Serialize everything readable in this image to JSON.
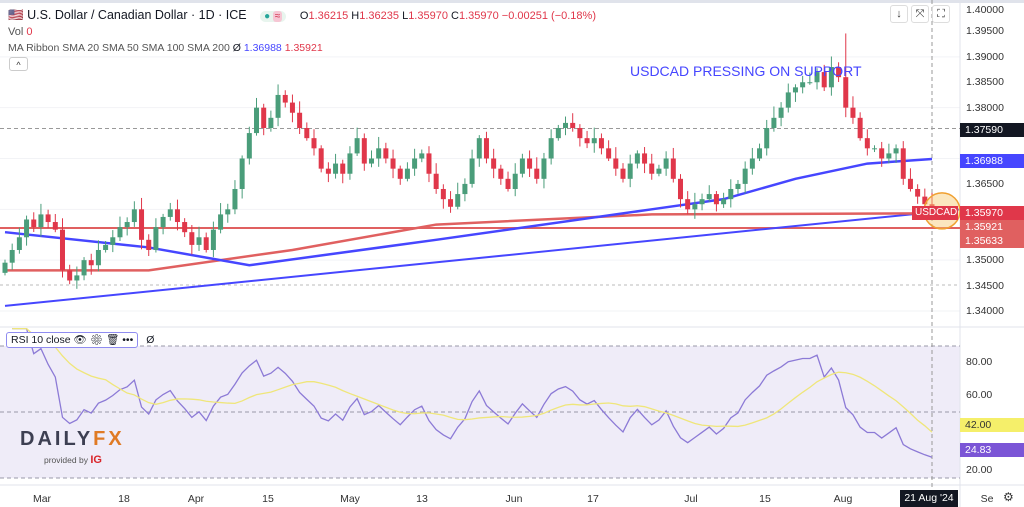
{
  "header": {
    "title": "U.S. Dollar / Canadian Dollar · 1D · ICE",
    "open_label": "O",
    "open": "1.36215",
    "high_label": "H",
    "high": "1.36235",
    "low_label": "L",
    "low": "1.35970",
    "close_label": "C",
    "close": "1.35970",
    "change": "−0.00251 (−0.18%)",
    "vol_label": "Vol",
    "vol": "0",
    "ma_label": "MA Ribbon SMA 20 SMA 50 SMA 100 SMA 200",
    "ma_symbol": "Ø",
    "ma_val1": "1.36988",
    "ma_val2": "1.35921",
    "collapse": "^"
  },
  "toolbar": {
    "down": "↓",
    "shrink": "⤧",
    "fullscreen": "⛶"
  },
  "annotation": "USDCAD PRESSING ON SUPPORT",
  "price_axis": [
    "1.40000",
    "1.39500",
    "1.39000",
    "1.38500",
    "1.38000",
    "1.36500",
    "1.35000",
    "1.34500",
    "1.34000"
  ],
  "price_axis_values": [
    1.4,
    1.395,
    1.39,
    1.385,
    1.38,
    1.365,
    1.35,
    1.345,
    1.34
  ],
  "tags": {
    "cross": "1.37590",
    "sma_blue": "1.36988",
    "symbol": "USDCAD",
    "last": "1.35970",
    "sma_red": "1.35921",
    "hline": "1.35633"
  },
  "rsi": {
    "legend": "RSI 10 close",
    "null": "Ø",
    "axis": [
      "80.00",
      "60.00",
      "20.00"
    ],
    "ma_tag": "42.00",
    "rsi_tag": "24.83"
  },
  "time_axis": [
    "Mar",
    "18",
    "Apr",
    "15",
    "May",
    "13",
    "Jun",
    "17",
    "Jul",
    "15",
    "Aug",
    "Se"
  ],
  "cursor_date": "21 Aug '24",
  "logo": {
    "text1": "DAILY",
    "text2": "FX",
    "sub": "provided by",
    "brand": "IG"
  },
  "colors": {
    "up": "#4a9d7a",
    "down": "#e0374a",
    "sma_blue": "#4646ff",
    "sma_red": "#e06060",
    "rsi": "#8c7ad6",
    "rsi_ma": "#efe67a"
  },
  "chart_data": {
    "type": "candlestick",
    "closes": [
      1.3495,
      1.352,
      1.3545,
      1.358,
      1.3565,
      1.359,
      1.3575,
      1.356,
      1.348,
      1.346,
      1.347,
      1.35,
      1.349,
      1.352,
      1.353,
      1.3545,
      1.3565,
      1.3575,
      1.36,
      1.354,
      1.352,
      1.3565,
      1.3585,
      1.36,
      1.3575,
      1.3555,
      1.353,
      1.3545,
      1.352,
      1.356,
      1.359,
      1.36,
      1.364,
      1.37,
      1.375,
      1.38,
      1.376,
      1.378,
      1.3825,
      1.381,
      1.379,
      1.376,
      1.374,
      1.372,
      1.368,
      1.367,
      1.369,
      1.367,
      1.371,
      1.374,
      1.369,
      1.37,
      1.372,
      1.37,
      1.368,
      1.366,
      1.368,
      1.37,
      1.371,
      1.367,
      1.364,
      1.362,
      1.3605,
      1.363,
      1.365,
      1.37,
      1.374,
      1.37,
      1.368,
      1.366,
      1.364,
      1.367,
      1.37,
      1.368,
      1.366,
      1.37,
      1.374,
      1.376,
      1.377,
      1.376,
      1.374,
      1.373,
      1.374,
      1.372,
      1.37,
      1.368,
      1.366,
      1.369,
      1.371,
      1.369,
      1.367,
      1.368,
      1.37,
      1.366,
      1.362,
      1.36,
      1.361,
      1.362,
      1.363,
      1.361,
      1.362,
      1.364,
      1.365,
      1.368,
      1.37,
      1.372,
      1.376,
      1.378,
      1.38,
      1.383,
      1.384,
      1.385,
      1.385,
      1.387,
      1.384,
      1.388,
      1.386,
      1.38,
      1.378,
      1.374,
      1.372,
      1.372,
      1.37,
      1.371,
      1.372,
      1.366,
      1.364,
      1.3625,
      1.361,
      1.3597
    ],
    "max_high": 1.3946,
    "sma100": [
      [
        0,
        1.3555
      ],
      [
        20,
        1.3525
      ],
      [
        34,
        1.349
      ],
      [
        60,
        1.354
      ],
      [
        90,
        1.36
      ],
      [
        100,
        1.362
      ],
      [
        110,
        1.366
      ],
      [
        120,
        1.369
      ],
      [
        129,
        1.3699
      ]
    ],
    "sma200": [
      [
        0,
        1.348
      ],
      [
        20,
        1.348
      ],
      [
        40,
        1.352
      ],
      [
        60,
        1.357
      ],
      [
        90,
        1.359
      ],
      [
        129,
        1.3592
      ]
    ],
    "trendline": [
      [
        0,
        1.341
      ],
      [
        133,
        1.36
      ]
    ],
    "hline": 1.35633,
    "cross_price": 1.3759,
    "ylim": [
      1.338,
      1.401
    ]
  }
}
